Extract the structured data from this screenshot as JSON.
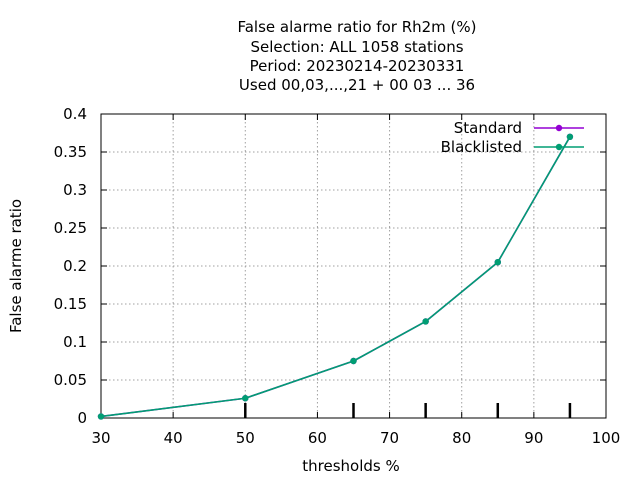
{
  "chart_data": {
    "type": "line",
    "title_lines": [
      "False alarme ratio  for Rh2m (%)",
      "Selection: ALL   1058 stations",
      "Period: 20230214-20230331",
      "Used  00,03,...,21  + 00 03 ... 36"
    ],
    "xlabel": "thresholds %",
    "ylabel": "False alarme ratio",
    "xlim": [
      30,
      100
    ],
    "ylim": [
      0,
      0.4
    ],
    "x_ticks": [
      30,
      40,
      50,
      60,
      70,
      80,
      90,
      100
    ],
    "y_ticks": [
      0,
      0.05,
      0.1,
      0.15,
      0.2,
      0.25,
      0.3,
      0.35,
      0.4
    ],
    "x_tick_labels": [
      "30",
      "40",
      "50",
      "60",
      "70",
      "80",
      "90",
      "100"
    ],
    "y_tick_labels": [
      "0",
      "0.05",
      "0.1",
      "0.15",
      "0.2",
      "0.25",
      "0.3",
      "0.35",
      "0.4"
    ],
    "grid": true,
    "legend_position": "top-right",
    "threshold_marks": [
      50,
      65,
      75,
      85,
      95
    ],
    "series": [
      {
        "name": "Standard",
        "color": "#9400d3",
        "x": [
          30,
          50,
          65,
          75,
          85,
          95
        ],
        "y": [
          0.002,
          0.026,
          0.075,
          0.127,
          0.205,
          0.37
        ]
      },
      {
        "name": "Blacklisted",
        "color": "#009e73",
        "x": [
          30,
          50,
          65,
          75,
          85,
          95
        ],
        "y": [
          0.002,
          0.026,
          0.075,
          0.127,
          0.205,
          0.37
        ]
      }
    ]
  }
}
